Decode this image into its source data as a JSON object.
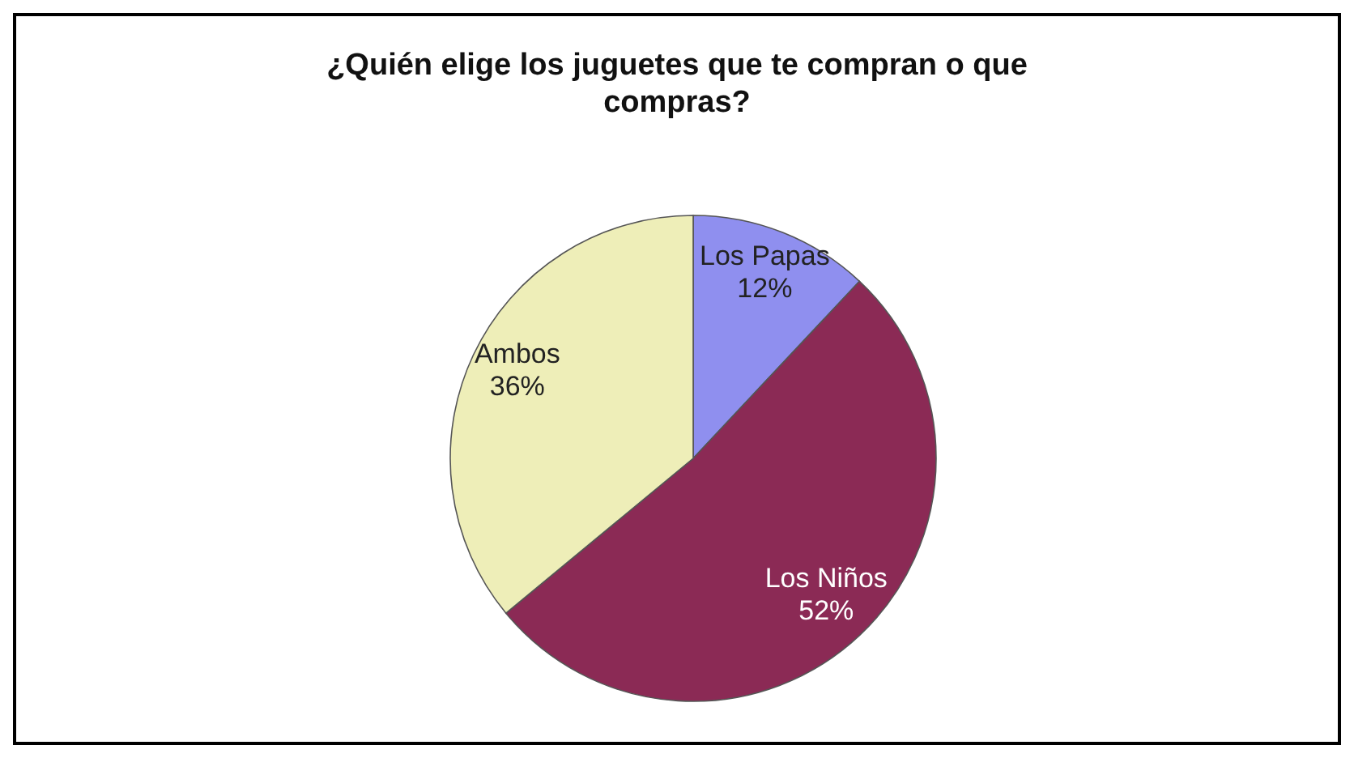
{
  "chart_data": {
    "type": "pie",
    "title": "¿Quién elige los juguetes que te compran o que compras?",
    "categories": [
      "Los Papas",
      "Los Niños",
      "Ambos"
    ],
    "values": [
      12,
      52,
      36
    ],
    "value_labels": [
      "12%",
      "52%",
      "36%"
    ],
    "colors": [
      "#8f8fef",
      "#8b2a55",
      "#eeeeb8"
    ],
    "legend": false
  }
}
